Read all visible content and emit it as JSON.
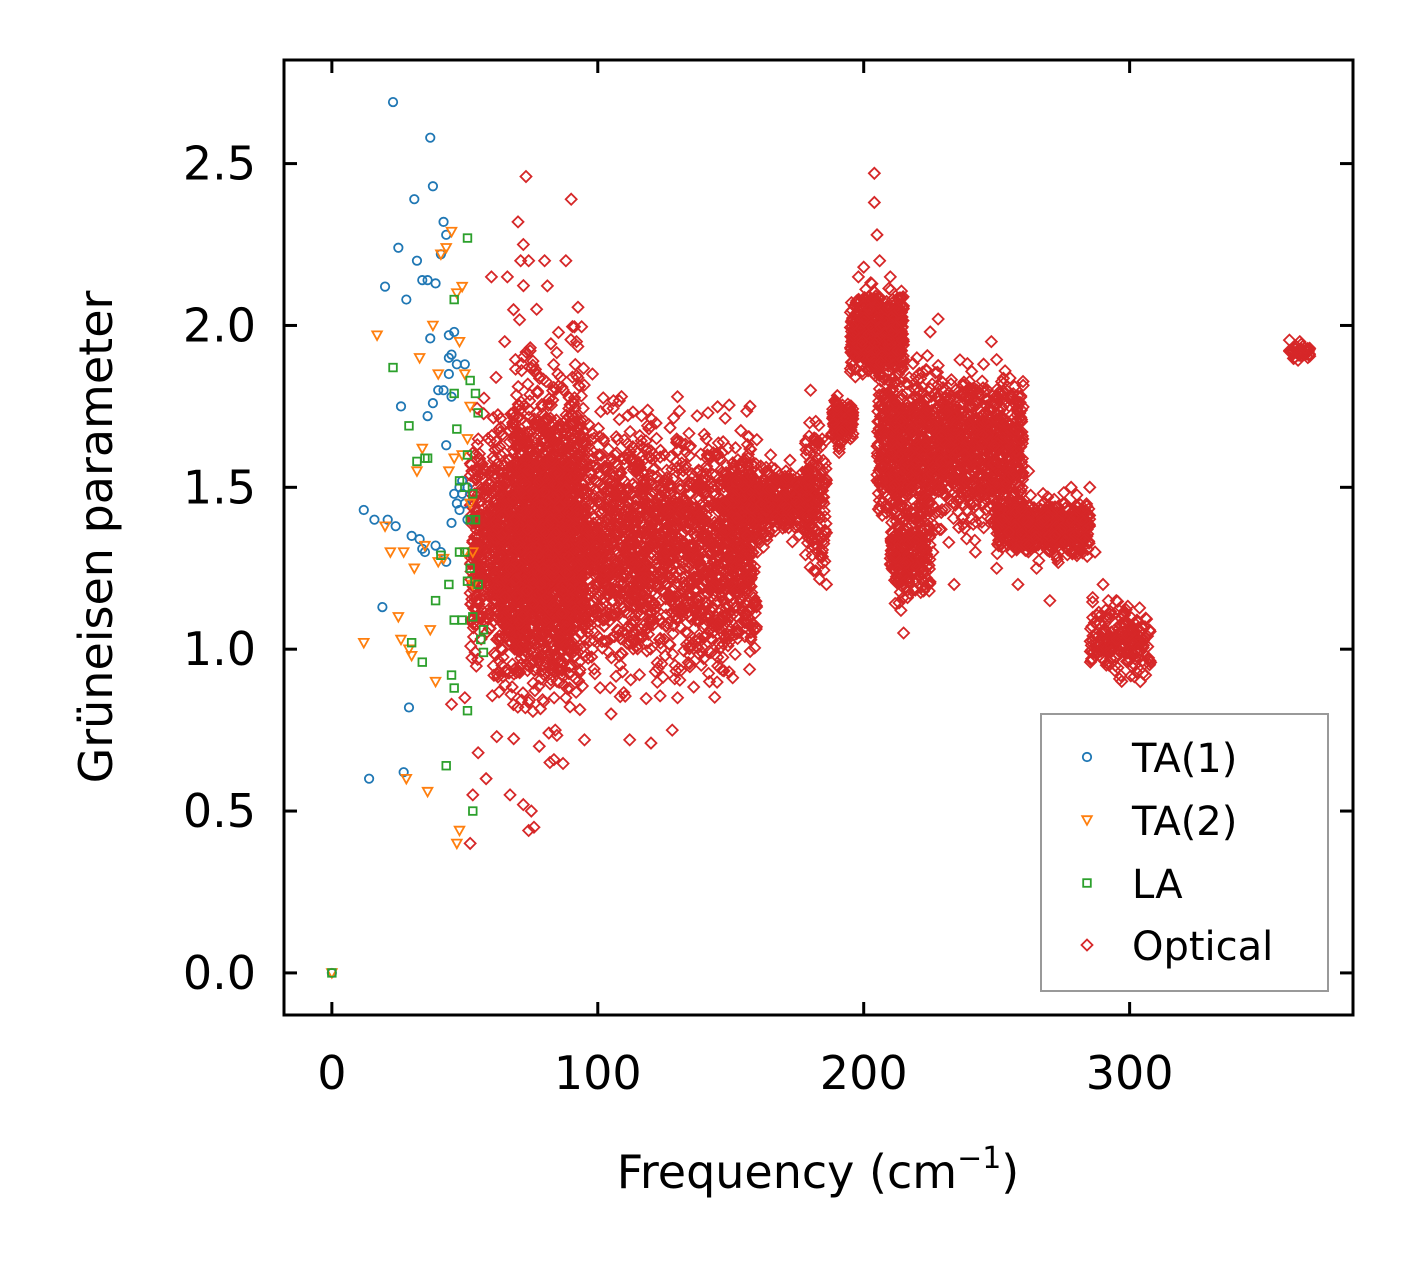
{
  "chart_data": {
    "type": "scatter",
    "title": "",
    "xlabel": "Frequency (cm",
    "xlabel_sup": "−1",
    "xlabel_close": ")",
    "ylabel": "Grüneisen parameter",
    "xlim": [
      -18,
      384
    ],
    "ylim": [
      -0.13,
      2.82
    ],
    "x_ticks": [
      0,
      100,
      200,
      300
    ],
    "x_tick_labels": [
      "0",
      "100",
      "200",
      "300"
    ],
    "y_ticks": [
      0.0,
      0.5,
      1.0,
      1.5,
      2.0,
      2.5
    ],
    "y_tick_labels": [
      "0.0",
      "0.5",
      "1.0",
      "1.5",
      "2.0",
      "2.5"
    ],
    "grid": false,
    "legend_position": "lower-right",
    "series": [
      {
        "name": "TA(1)",
        "marker": "circle",
        "color": "#1f77b4",
        "points": [
          [
            0,
            0
          ],
          [
            14,
            0.6
          ],
          [
            12,
            1.43
          ],
          [
            16,
            1.4
          ],
          [
            19,
            1.13
          ],
          [
            20,
            2.12
          ],
          [
            21,
            1.4
          ],
          [
            23,
            2.69
          ],
          [
            24,
            1.38
          ],
          [
            25,
            2.24
          ],
          [
            26,
            1.75
          ],
          [
            27,
            0.62
          ],
          [
            28,
            2.08
          ],
          [
            29,
            0.82
          ],
          [
            30,
            1.35
          ],
          [
            31,
            2.39
          ],
          [
            32,
            2.2
          ],
          [
            33,
            1.34
          ],
          [
            34,
            1.31
          ],
          [
            34,
            2.14
          ],
          [
            35,
            1.3
          ],
          [
            36,
            2.14
          ],
          [
            36,
            1.72
          ],
          [
            37,
            2.58
          ],
          [
            37,
            1.96
          ],
          [
            38,
            2.43
          ],
          [
            38,
            1.76
          ],
          [
            39,
            2.13
          ],
          [
            39,
            1.32
          ],
          [
            40,
            1.8
          ],
          [
            41,
            1.3
          ],
          [
            41,
            2.22
          ],
          [
            42,
            2.32
          ],
          [
            42,
            1.8
          ],
          [
            43,
            2.28
          ],
          [
            43,
            1.63
          ],
          [
            43,
            1.27
          ],
          [
            44,
            1.97
          ],
          [
            44,
            1.9
          ],
          [
            44,
            1.85
          ],
          [
            45,
            1.91
          ],
          [
            45,
            1.78
          ],
          [
            45,
            1.39
          ],
          [
            46,
            1.48
          ],
          [
            46,
            1.98
          ],
          [
            47,
            1.45
          ],
          [
            47,
            1.88
          ],
          [
            48,
            1.5
          ],
          [
            48,
            1.43
          ],
          [
            49,
            1.48
          ],
          [
            49,
            1.52
          ],
          [
            50,
            1.45
          ],
          [
            50,
            1.88
          ],
          [
            51,
            1.5
          ],
          [
            51,
            1.4
          ]
        ]
      },
      {
        "name": "TA(2)",
        "marker": "triangle-down",
        "color": "#ff7f0e",
        "points": [
          [
            0,
            0
          ],
          [
            12,
            1.02
          ],
          [
            17,
            1.97
          ],
          [
            20,
            1.38
          ],
          [
            22,
            1.3
          ],
          [
            25,
            1.1
          ],
          [
            26,
            1.03
          ],
          [
            27,
            1.3
          ],
          [
            28,
            0.6
          ],
          [
            29,
            1.0
          ],
          [
            30,
            0.98
          ],
          [
            31,
            1.25
          ],
          [
            32,
            1.55
          ],
          [
            33,
            1.9
          ],
          [
            34,
            1.62
          ],
          [
            35,
            1.32
          ],
          [
            36,
            0.56
          ],
          [
            37,
            1.06
          ],
          [
            38,
            2.0
          ],
          [
            39,
            0.9
          ],
          [
            40,
            1.85
          ],
          [
            40,
            1.27
          ],
          [
            41,
            2.22
          ],
          [
            42,
            1.28
          ],
          [
            43,
            2.24
          ],
          [
            44,
            1.55
          ],
          [
            45,
            2.29
          ],
          [
            46,
            1.59
          ],
          [
            47,
            0.4
          ],
          [
            47,
            2.1
          ],
          [
            48,
            0.44
          ],
          [
            48,
            1.95
          ],
          [
            49,
            1.6
          ],
          [
            49,
            2.12
          ],
          [
            50,
            1.3
          ],
          [
            50,
            1.85
          ],
          [
            51,
            1.65
          ],
          [
            52,
            1.45
          ],
          [
            52,
            1.75
          ],
          [
            53,
            1.2
          ],
          [
            53,
            1.3
          ]
        ]
      },
      {
        "name": "LA",
        "marker": "square",
        "color": "#2ca02c",
        "points": [
          [
            0,
            0
          ],
          [
            23,
            1.87
          ],
          [
            29,
            1.69
          ],
          [
            30,
            1.02
          ],
          [
            32,
            1.58
          ],
          [
            34,
            0.96
          ],
          [
            35,
            1.59
          ],
          [
            36,
            1.59
          ],
          [
            39,
            1.15
          ],
          [
            41,
            1.29
          ],
          [
            43,
            0.64
          ],
          [
            44,
            1.2
          ],
          [
            45,
            0.92
          ],
          [
            46,
            0.88
          ],
          [
            46,
            1.09
          ],
          [
            46,
            1.79
          ],
          [
            46,
            2.08
          ],
          [
            47,
            1.68
          ],
          [
            48,
            1.3
          ],
          [
            48,
            1.52
          ],
          [
            49,
            1.09
          ],
          [
            50,
            1.3
          ],
          [
            50,
            1.5
          ],
          [
            51,
            0.81
          ],
          [
            51,
            1.6
          ],
          [
            51,
            1.21
          ],
          [
            51,
            2.27
          ],
          [
            52,
            1.4
          ],
          [
            52,
            1.25
          ],
          [
            52,
            1.83
          ],
          [
            53,
            0.5
          ],
          [
            53,
            1.1
          ],
          [
            53,
            1.48
          ],
          [
            54,
            1.79
          ],
          [
            54,
            1.4
          ],
          [
            55,
            1.73
          ],
          [
            55,
            1.2
          ],
          [
            56,
            1.03
          ],
          [
            57,
            1.06
          ],
          [
            57,
            0.99
          ]
        ]
      },
      {
        "name": "Optical",
        "marker": "diamond",
        "color": "#d62728",
        "points": [
          [
            45,
            0.83
          ],
          [
            50,
            0.85
          ],
          [
            52,
            0.4
          ],
          [
            53,
            0.55
          ],
          [
            55,
            0.68
          ],
          [
            58,
            0.6
          ],
          [
            60,
            2.15
          ],
          [
            62,
            0.73
          ],
          [
            64,
            0.95
          ],
          [
            65,
            1.95
          ],
          [
            66,
            2.15
          ],
          [
            67,
            0.55
          ],
          [
            68,
            1.7
          ],
          [
            70,
            2.32
          ],
          [
            71,
            2.2
          ],
          [
            72,
            0.52
          ],
          [
            72,
            2.25
          ],
          [
            73,
            2.46
          ],
          [
            74,
            0.44
          ],
          [
            74,
            2.2
          ],
          [
            75,
            0.5
          ],
          [
            76,
            0.45
          ],
          [
            77,
            2.05
          ],
          [
            78,
            0.7
          ],
          [
            80,
            2.2
          ],
          [
            82,
            0.65
          ],
          [
            84,
            0.75
          ],
          [
            85,
            1.85
          ],
          [
            88,
            2.2
          ],
          [
            88,
            0.85
          ],
          [
            90,
            2.39
          ],
          [
            92,
            1.95
          ],
          [
            95,
            0.72
          ],
          [
            98,
            1.85
          ],
          [
            102,
            1.65
          ],
          [
            105,
            0.8
          ],
          [
            108,
            1.5
          ],
          [
            112,
            0.72
          ],
          [
            115,
            1.57
          ],
          [
            120,
            0.71
          ],
          [
            125,
            1.6
          ],
          [
            128,
            0.75
          ],
          [
            130,
            0.85
          ],
          [
            135,
            1.48
          ],
          [
            138,
            1.55
          ],
          [
            140,
            1.4
          ],
          [
            142,
            0.9
          ],
          [
            145,
            1.5
          ],
          [
            148,
            1.45
          ],
          [
            150,
            1.2
          ],
          [
            155,
            1.5
          ],
          [
            160,
            1.3
          ],
          [
            165,
            1.6
          ],
          [
            170,
            1.4
          ],
          [
            175,
            1.5
          ],
          [
            180,
            1.8
          ],
          [
            182,
            1.65
          ],
          [
            185,
            1.45
          ],
          [
            186,
            1.2
          ],
          [
            190,
            1.75
          ],
          [
            195,
            1.65
          ],
          [
            198,
            2.15
          ],
          [
            200,
            2.18
          ],
          [
            202,
            2.05
          ],
          [
            204,
            2.38
          ],
          [
            204,
            2.47
          ],
          [
            205,
            2.28
          ],
          [
            206,
            2.2
          ],
          [
            208,
            1.65
          ],
          [
            210,
            2.15
          ],
          [
            212,
            1.55
          ],
          [
            214,
            1.12
          ],
          [
            215,
            1.05
          ],
          [
            218,
            1.5
          ],
          [
            220,
            1.9
          ],
          [
            222,
            1.4
          ],
          [
            225,
            1.98
          ],
          [
            226,
            1.3
          ],
          [
            228,
            2.02
          ],
          [
            230,
            1.55
          ],
          [
            232,
            1.33
          ],
          [
            234,
            1.2
          ],
          [
            235,
            1.5
          ],
          [
            238,
            1.6
          ],
          [
            240,
            1.45
          ],
          [
            242,
            1.3
          ],
          [
            245,
            1.5
          ],
          [
            248,
            1.95
          ],
          [
            250,
            1.25
          ],
          [
            252,
            1.4
          ],
          [
            255,
            1.65
          ],
          [
            258,
            1.2
          ],
          [
            260,
            1.4
          ],
          [
            262,
            1.55
          ],
          [
            265,
            1.25
          ],
          [
            268,
            1.4
          ],
          [
            270,
            1.15
          ],
          [
            272,
            1.35
          ],
          [
            275,
            1.45
          ],
          [
            278,
            1.5
          ],
          [
            282,
            1.4
          ],
          [
            285,
            1.5
          ],
          [
            287,
            1.3
          ],
          [
            290,
            1.2
          ],
          [
            292,
            1.15
          ],
          [
            295,
            1.15
          ],
          [
            298,
            1.08
          ],
          [
            300,
            1.0
          ],
          [
            302,
            0.95
          ],
          [
            304,
            0.9
          ],
          [
            306,
            0.92
          ],
          [
            362,
            1.9
          ],
          [
            364,
            1.95
          ],
          [
            366,
            1.93
          ]
        ]
      }
    ],
    "optical_density": [
      {
        "x_min": 52,
        "x_max": 160,
        "y_min": 0.78,
        "y_max": 1.85,
        "count": 3000
      },
      {
        "x_min": 68,
        "x_max": 95,
        "y_min": 0.6,
        "y_max": 2.15,
        "count": 900
      },
      {
        "x_min": 60,
        "x_max": 90,
        "y_min": 0.7,
        "y_max": 1.9,
        "count": 500
      },
      {
        "x_min": 150,
        "x_max": 180,
        "y_min": 1.3,
        "y_max": 1.6,
        "count": 500
      },
      {
        "x_min": 178,
        "x_max": 186,
        "y_min": 1.15,
        "y_max": 1.78,
        "count": 150
      },
      {
        "x_min": 188,
        "x_max": 196,
        "y_min": 1.6,
        "y_max": 1.82,
        "count": 120
      },
      {
        "x_min": 195,
        "x_max": 215,
        "y_min": 1.8,
        "y_max": 2.15,
        "count": 600
      },
      {
        "x_min": 205,
        "x_max": 260,
        "y_min": 1.3,
        "y_max": 1.95,
        "count": 1400
      },
      {
        "x_min": 210,
        "x_max": 225,
        "y_min": 1.1,
        "y_max": 1.5,
        "count": 250
      },
      {
        "x_min": 250,
        "x_max": 285,
        "y_min": 1.25,
        "y_max": 1.5,
        "count": 600
      },
      {
        "x_min": 285,
        "x_max": 308,
        "y_min": 0.88,
        "y_max": 1.18,
        "count": 200
      },
      {
        "x_min": 360,
        "x_max": 368,
        "y_min": 1.88,
        "y_max": 1.96,
        "count": 40
      }
    ]
  }
}
